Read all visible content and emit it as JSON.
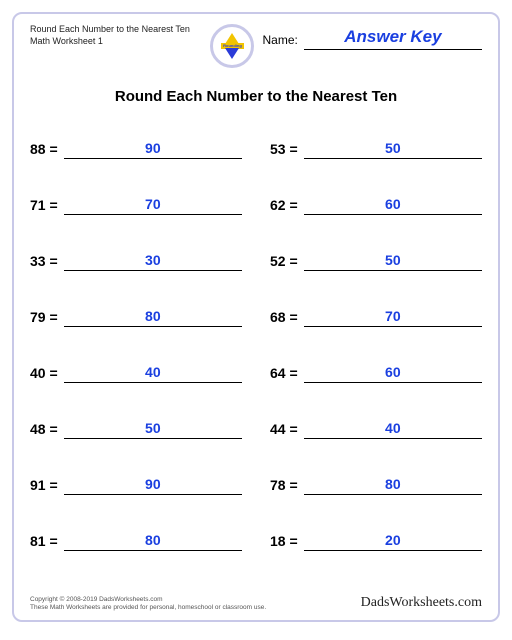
{
  "header": {
    "title_line1": "Round Each Number to the Nearest Ten",
    "title_line2": "Math Worksheet 1",
    "name_label": "Name:",
    "answer_key": "Answer Key"
  },
  "title": "Round Each Number to the Nearest Ten",
  "problems_left": [
    {
      "q": "88 =",
      "a": "90"
    },
    {
      "q": "71 =",
      "a": "70"
    },
    {
      "q": "33 =",
      "a": "30"
    },
    {
      "q": "79 =",
      "a": "80"
    },
    {
      "q": "40 =",
      "a": "40"
    },
    {
      "q": "48 =",
      "a": "50"
    },
    {
      "q": "91 =",
      "a": "90"
    },
    {
      "q": "81 =",
      "a": "80"
    }
  ],
  "problems_right": [
    {
      "q": "53 =",
      "a": "50"
    },
    {
      "q": "62 =",
      "a": "60"
    },
    {
      "q": "52 =",
      "a": "50"
    },
    {
      "q": "68 =",
      "a": "70"
    },
    {
      "q": "64 =",
      "a": "60"
    },
    {
      "q": "44 =",
      "a": "40"
    },
    {
      "q": "78 =",
      "a": "80"
    },
    {
      "q": "18 =",
      "a": "20"
    }
  ],
  "footer": {
    "copyright": "Copyright © 2008-2019 DadsWorksheets.com",
    "note": "These Math Worksheets are provided for personal, homeschool or classroom use.",
    "brand": "DadsWorksheets.com"
  },
  "colors": {
    "answer": "#1a3fe0",
    "border": "#c8c8e8",
    "text": "#000000"
  }
}
